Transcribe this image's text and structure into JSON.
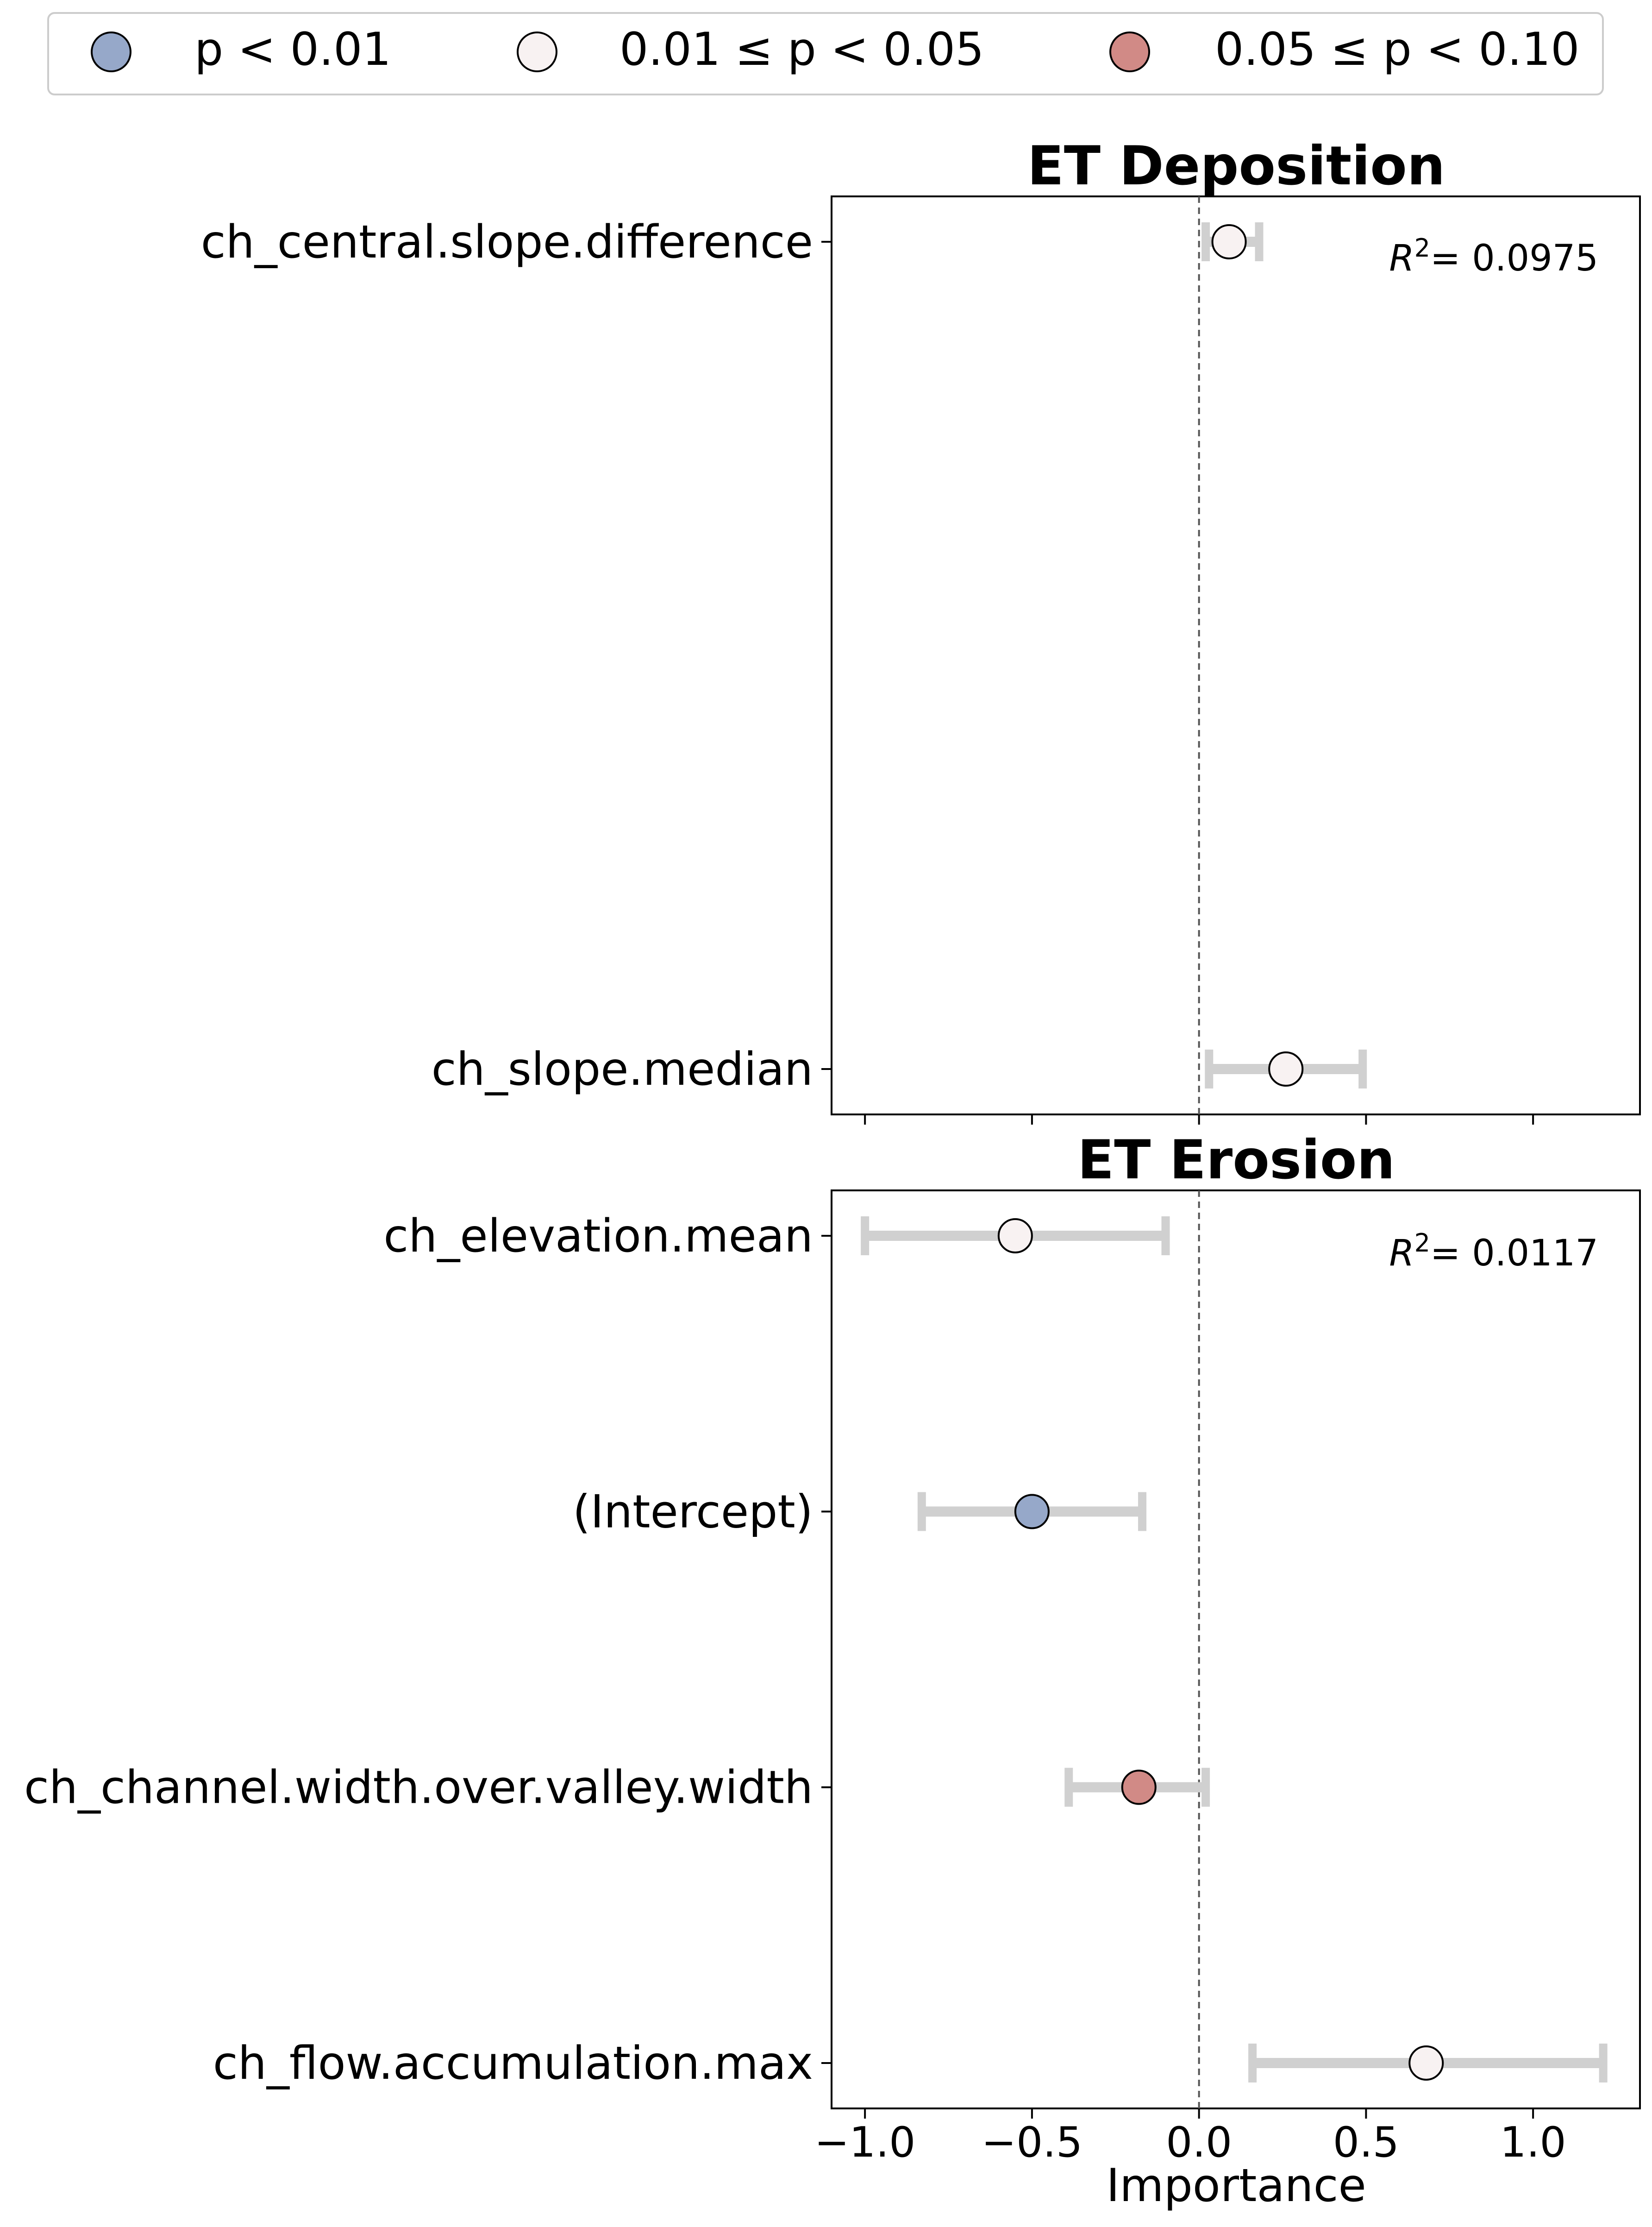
{
  "legend": {
    "items": [
      {
        "label": "p < 0.01",
        "color": "#96a8c9"
      },
      {
        "label": "0.01 ≤ p < 0.05",
        "color": "#f8f2f2"
      },
      {
        "label": "0.05 ≤ p < 0.10",
        "color": "#d18a86"
      }
    ]
  },
  "chart_data": [
    {
      "type": "scatter",
      "title": "ET Deposition",
      "annotation": {
        "r2_label": "R",
        "r2_sup": "2",
        "r2_value": "= 0.0975"
      },
      "xlabel": "",
      "xlim": [
        -1.1,
        1.32
      ],
      "categories": [
        "ch_central.slope.difference",
        "ch_slope.median"
      ],
      "points": [
        {
          "label": "ch_central.slope.difference",
          "estimate": 0.09,
          "ci_low": 0.02,
          "ci_high": 0.18,
          "significance": "0.01 ≤ p < 0.05"
        },
        {
          "label": "ch_slope.median",
          "estimate": 0.26,
          "ci_low": 0.03,
          "ci_high": 0.49,
          "significance": "0.01 ≤ p < 0.05"
        }
      ],
      "vline": 0,
      "grid": false
    },
    {
      "type": "scatter",
      "title": "ET Erosion",
      "annotation": {
        "r2_label": "R",
        "r2_sup": "2",
        "r2_value": "= 0.0117"
      },
      "xlabel": "Importance",
      "xlim": [
        -1.1,
        1.32
      ],
      "xticks": [
        "−1.0",
        "−0.5",
        "0.0",
        "0.5",
        "1.0"
      ],
      "xtick_values": [
        -1.0,
        -0.5,
        0.0,
        0.5,
        1.0
      ],
      "categories": [
        "ch_elevation.mean",
        "(Intercept)",
        "ch_channel.width.over.valley.width",
        "ch_flow.accumulation.max"
      ],
      "points": [
        {
          "label": "ch_elevation.mean",
          "estimate": -0.55,
          "ci_low": -1.0,
          "ci_high": -0.1,
          "significance": "0.01 ≤ p < 0.05"
        },
        {
          "label": "(Intercept)",
          "estimate": -0.5,
          "ci_low": -0.83,
          "ci_high": -0.17,
          "significance": "p < 0.01"
        },
        {
          "label": "ch_channel.width.over.valley.width",
          "estimate": -0.18,
          "ci_low": -0.39,
          "ci_high": 0.02,
          "significance": "0.05 ≤ p < 0.10"
        },
        {
          "label": "ch_flow.accumulation.max",
          "estimate": 0.68,
          "ci_low": 0.16,
          "ci_high": 1.21,
          "significance": "0.01 ≤ p < 0.05"
        }
      ],
      "vline": 0,
      "grid": false
    }
  ]
}
